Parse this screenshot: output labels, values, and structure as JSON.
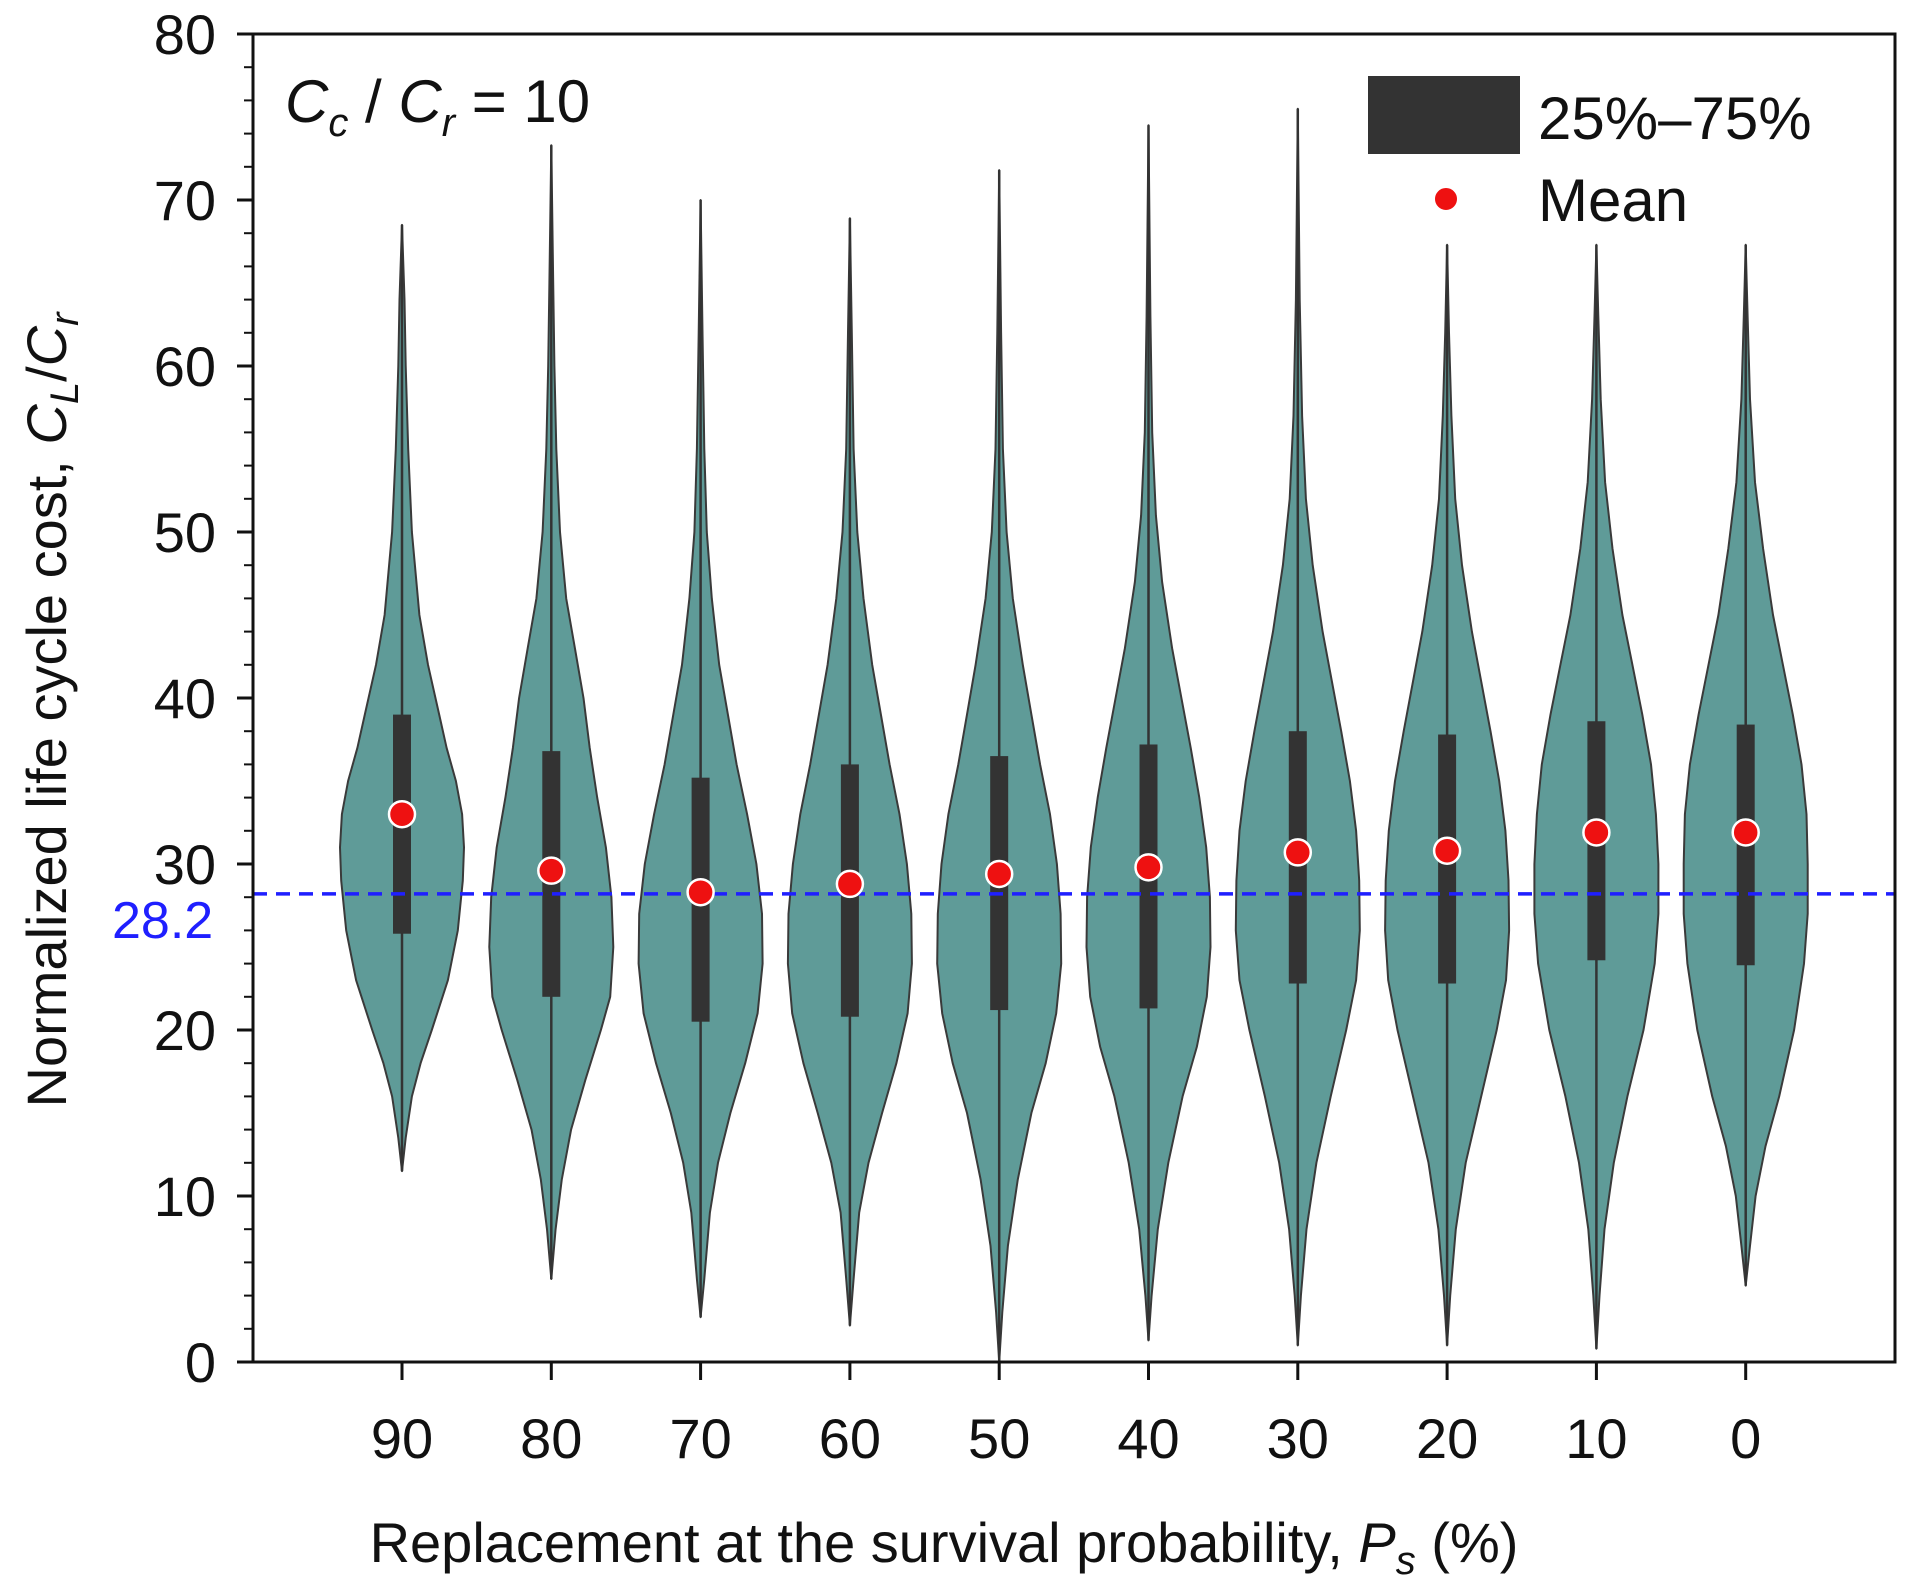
{
  "chart_data": {
    "type": "violin",
    "annotation": {
      "c_main": "C",
      "c_sub": "c",
      "sep": " / ",
      "r_main": "C",
      "r_sub": "r",
      "rest": " = 10"
    },
    "xlabel": {
      "text": "Replacement at the survival probability, ",
      "var": "P",
      "sub": "s",
      "unit": " (%)"
    },
    "ylabel": {
      "text": "Normalized life cycle cost, ",
      "num": "C",
      "num_sub": "L",
      "slash": "/",
      "den": "C",
      "den_sub": "r"
    },
    "ylim": [
      0,
      80
    ],
    "yticks": [
      "0",
      "10",
      "20",
      "30",
      "40",
      "50",
      "60",
      "70",
      "80"
    ],
    "categories": [
      "90",
      "80",
      "70",
      "60",
      "50",
      "40",
      "30",
      "20",
      "10",
      "0"
    ],
    "violins": [
      {
        "cat": "90",
        "min": 11.5,
        "max": 68.5,
        "q1": 25.8,
        "q3": 39.0,
        "mean": 33.0,
        "profile": [
          [
            11.5,
            0
          ],
          [
            13.5,
            0.06
          ],
          [
            16,
            0.16
          ],
          [
            18,
            0.3
          ],
          [
            20,
            0.48
          ],
          [
            23,
            0.74
          ],
          [
            26,
            0.9
          ],
          [
            29,
            0.98
          ],
          [
            31,
            1.0
          ],
          [
            33,
            0.97
          ],
          [
            35,
            0.87
          ],
          [
            37,
            0.72
          ],
          [
            39,
            0.6
          ],
          [
            42,
            0.42
          ],
          [
            45,
            0.28
          ],
          [
            50,
            0.16
          ],
          [
            55,
            0.1
          ],
          [
            60,
            0.06
          ],
          [
            64,
            0.04
          ],
          [
            68.5,
            0
          ]
        ]
      },
      {
        "cat": "80",
        "min": 5.0,
        "max": 73.3,
        "q1": 22.0,
        "q3": 36.8,
        "mean": 29.6,
        "profile": [
          [
            5,
            0
          ],
          [
            8,
            0.07
          ],
          [
            11,
            0.17
          ],
          [
            14,
            0.32
          ],
          [
            17,
            0.55
          ],
          [
            20,
            0.8
          ],
          [
            22,
            0.95
          ],
          [
            25,
            1.0
          ],
          [
            28,
            0.97
          ],
          [
            31,
            0.88
          ],
          [
            34,
            0.74
          ],
          [
            37,
            0.62
          ],
          [
            40,
            0.52
          ],
          [
            43,
            0.38
          ],
          [
            46,
            0.24
          ],
          [
            50,
            0.14
          ],
          [
            55,
            0.08
          ],
          [
            60,
            0.05
          ],
          [
            65,
            0.03
          ],
          [
            73.3,
            0
          ]
        ]
      },
      {
        "cat": "70",
        "min": 2.7,
        "max": 70.0,
        "q1": 20.5,
        "q3": 35.2,
        "mean": 28.3,
        "profile": [
          [
            2.7,
            0
          ],
          [
            5,
            0.06
          ],
          [
            9,
            0.15
          ],
          [
            12,
            0.28
          ],
          [
            15,
            0.48
          ],
          [
            18,
            0.72
          ],
          [
            21,
            0.92
          ],
          [
            24,
            1.0
          ],
          [
            27,
            0.99
          ],
          [
            30,
            0.9
          ],
          [
            33,
            0.75
          ],
          [
            36,
            0.58
          ],
          [
            39,
            0.44
          ],
          [
            42,
            0.3
          ],
          [
            46,
            0.18
          ],
          [
            50,
            0.1
          ],
          [
            55,
            0.06
          ],
          [
            62,
            0.03
          ],
          [
            70,
            0
          ]
        ]
      },
      {
        "cat": "60",
        "min": 2.2,
        "max": 68.9,
        "q1": 20.8,
        "q3": 36.0,
        "mean": 28.8,
        "profile": [
          [
            2.2,
            0
          ],
          [
            5,
            0.06
          ],
          [
            9,
            0.15
          ],
          [
            12,
            0.3
          ],
          [
            15,
            0.52
          ],
          [
            18,
            0.75
          ],
          [
            21,
            0.93
          ],
          [
            24,
            1.0
          ],
          [
            27,
            0.99
          ],
          [
            30,
            0.92
          ],
          [
            33,
            0.8
          ],
          [
            36,
            0.64
          ],
          [
            39,
            0.5
          ],
          [
            42,
            0.36
          ],
          [
            46,
            0.22
          ],
          [
            50,
            0.12
          ],
          [
            55,
            0.06
          ],
          [
            62,
            0.03
          ],
          [
            68.9,
            0
          ]
        ]
      },
      {
        "cat": "50",
        "min": 0.0,
        "max": 71.8,
        "q1": 21.2,
        "q3": 36.5,
        "mean": 29.4,
        "profile": [
          [
            0,
            0
          ],
          [
            3,
            0.05
          ],
          [
            7,
            0.14
          ],
          [
            11,
            0.3
          ],
          [
            15,
            0.52
          ],
          [
            18,
            0.75
          ],
          [
            21,
            0.92
          ],
          [
            24,
            1.0
          ],
          [
            27,
            0.99
          ],
          [
            30,
            0.93
          ],
          [
            33,
            0.82
          ],
          [
            36,
            0.66
          ],
          [
            39,
            0.52
          ],
          [
            42,
            0.38
          ],
          [
            46,
            0.22
          ],
          [
            50,
            0.12
          ],
          [
            55,
            0.06
          ],
          [
            62,
            0.03
          ],
          [
            71.8,
            0
          ]
        ]
      },
      {
        "cat": "40",
        "min": 1.3,
        "max": 74.5,
        "q1": 21.3,
        "q3": 37.2,
        "mean": 29.8,
        "profile": [
          [
            1.3,
            0
          ],
          [
            4,
            0.05
          ],
          [
            8,
            0.15
          ],
          [
            12,
            0.32
          ],
          [
            16,
            0.55
          ],
          [
            19,
            0.78
          ],
          [
            22,
            0.94
          ],
          [
            25,
            1.0
          ],
          [
            28,
            0.99
          ],
          [
            31,
            0.93
          ],
          [
            34,
            0.82
          ],
          [
            37,
            0.68
          ],
          [
            40,
            0.53
          ],
          [
            43,
            0.38
          ],
          [
            47,
            0.22
          ],
          [
            51,
            0.12
          ],
          [
            56,
            0.06
          ],
          [
            63,
            0.03
          ],
          [
            74.5,
            0
          ]
        ]
      },
      {
        "cat": "30",
        "min": 1.0,
        "max": 75.5,
        "q1": 22.8,
        "q3": 38.0,
        "mean": 30.7,
        "profile": [
          [
            1,
            0
          ],
          [
            4,
            0.05
          ],
          [
            8,
            0.14
          ],
          [
            12,
            0.3
          ],
          [
            16,
            0.53
          ],
          [
            20,
            0.78
          ],
          [
            23,
            0.94
          ],
          [
            26,
            1.0
          ],
          [
            29,
            0.99
          ],
          [
            32,
            0.94
          ],
          [
            35,
            0.84
          ],
          [
            38,
            0.7
          ],
          [
            41,
            0.55
          ],
          [
            44,
            0.4
          ],
          [
            48,
            0.24
          ],
          [
            52,
            0.13
          ],
          [
            57,
            0.07
          ],
          [
            64,
            0.03
          ],
          [
            75.5,
            0
          ]
        ]
      },
      {
        "cat": "20",
        "min": 1.0,
        "max": 67.3,
        "q1": 22.8,
        "q3": 37.8,
        "mean": 30.8,
        "profile": [
          [
            1,
            0
          ],
          [
            4,
            0.05
          ],
          [
            8,
            0.14
          ],
          [
            12,
            0.3
          ],
          [
            16,
            0.55
          ],
          [
            20,
            0.8
          ],
          [
            23,
            0.95
          ],
          [
            26,
            1.0
          ],
          [
            29,
            0.99
          ],
          [
            32,
            0.94
          ],
          [
            35,
            0.84
          ],
          [
            38,
            0.7
          ],
          [
            41,
            0.55
          ],
          [
            44,
            0.4
          ],
          [
            48,
            0.24
          ],
          [
            52,
            0.13
          ],
          [
            57,
            0.07
          ],
          [
            62,
            0.03
          ],
          [
            67.3,
            0
          ]
        ]
      },
      {
        "cat": "10",
        "min": 0.8,
        "max": 67.3,
        "q1": 24.2,
        "q3": 38.6,
        "mean": 31.9,
        "profile": [
          [
            0.8,
            0
          ],
          [
            4,
            0.05
          ],
          [
            8,
            0.13
          ],
          [
            12,
            0.28
          ],
          [
            16,
            0.5
          ],
          [
            20,
            0.76
          ],
          [
            24,
            0.94
          ],
          [
            27,
            1.0
          ],
          [
            30,
            1.0
          ],
          [
            33,
            0.96
          ],
          [
            36,
            0.88
          ],
          [
            39,
            0.74
          ],
          [
            42,
            0.58
          ],
          [
            45,
            0.42
          ],
          [
            49,
            0.26
          ],
          [
            53,
            0.14
          ],
          [
            58,
            0.07
          ],
          [
            63,
            0.03
          ],
          [
            67.3,
            0
          ]
        ]
      },
      {
        "cat": "0",
        "min": 4.6,
        "max": 67.3,
        "q1": 23.9,
        "q3": 38.4,
        "mean": 31.9,
        "profile": [
          [
            4.6,
            0
          ],
          [
            7,
            0.07
          ],
          [
            10,
            0.16
          ],
          [
            13,
            0.32
          ],
          [
            16,
            0.54
          ],
          [
            20,
            0.78
          ],
          [
            24,
            0.94
          ],
          [
            27,
            1.0
          ],
          [
            30,
            1.0
          ],
          [
            33,
            0.98
          ],
          [
            36,
            0.9
          ],
          [
            39,
            0.76
          ],
          [
            42,
            0.6
          ],
          [
            45,
            0.44
          ],
          [
            49,
            0.28
          ],
          [
            53,
            0.15
          ],
          [
            58,
            0.07
          ],
          [
            63,
            0.03
          ],
          [
            67.3,
            0
          ]
        ]
      }
    ],
    "reference_line": {
      "value": 28.2,
      "label": "28.2",
      "color": "#1f1fff"
    },
    "legend": {
      "iqr_label": "25%–75%",
      "mean_label": "Mean"
    },
    "colors": {
      "violin_fill": "#5f9b98",
      "violin_stroke": "#3a3a3a",
      "box": "#333333",
      "mean": "#ee1111",
      "axis": "#111111"
    }
  }
}
